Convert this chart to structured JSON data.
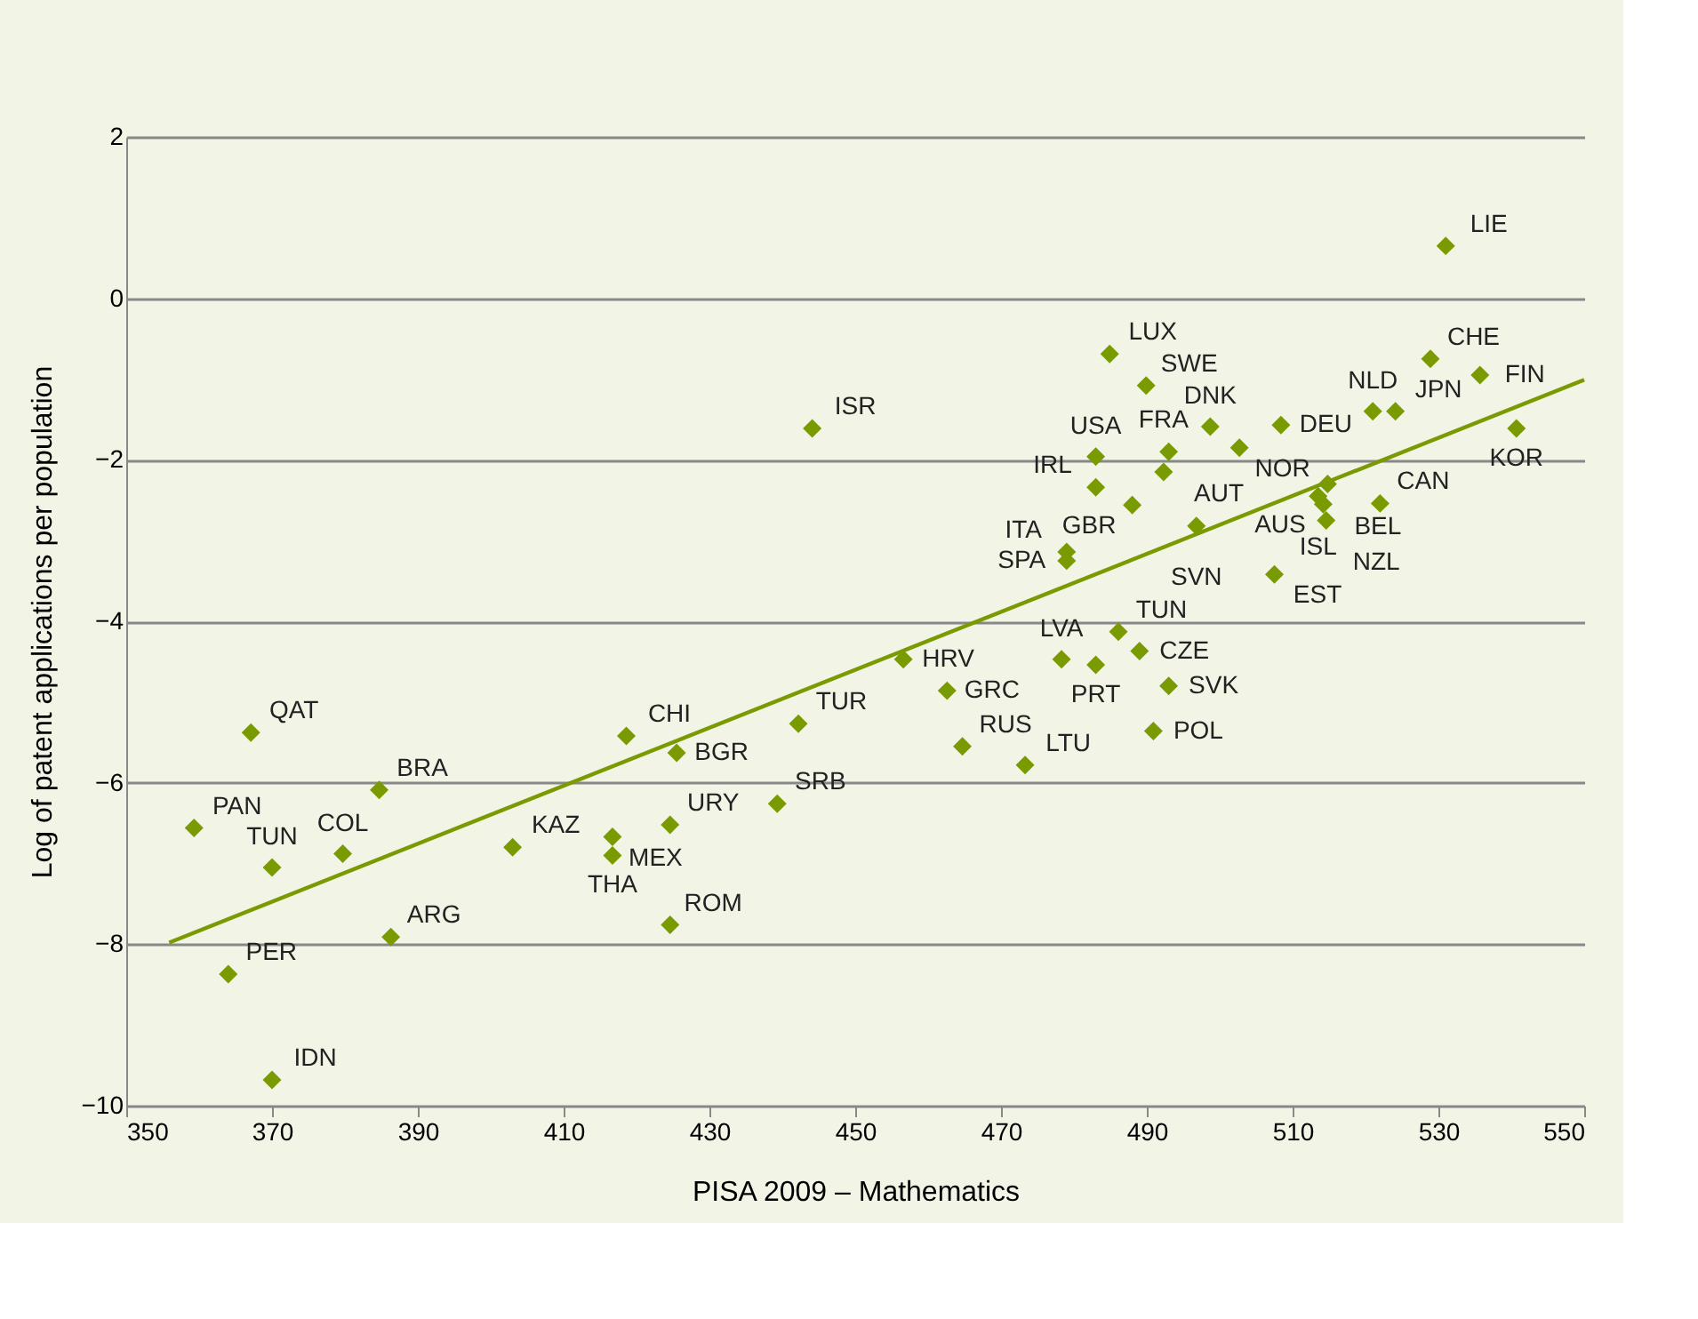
{
  "chart_data": {
    "type": "scatter",
    "xlabel": "PISA 2009 – Mathematics",
    "ylabel": "Log of patent applications per population",
    "xlim": [
      350,
      550
    ],
    "xticks": [
      350,
      370,
      390,
      410,
      430,
      450,
      470,
      490,
      510,
      530,
      550
    ],
    "ylim": [
      -10,
      2
    ],
    "yticks": [
      -10,
      -8,
      -6,
      -4,
      -2,
      0,
      2
    ],
    "grid": "y",
    "marker": "diamond",
    "series": [
      {
        "color": "#7a9a01",
        "x": [
          531.0,
          484.9,
          489.9,
          528.9,
          535.7,
          521.0,
          524.1,
          540.7,
          508.4,
          498.7,
          502.7,
          483.0,
          493.0,
          492.3,
          513.5,
          514.8,
          514.2,
          483.0,
          488.0,
          496.8,
          514.6,
          522.0,
          479.0,
          479.0,
          507.5,
          444.1,
          456.6,
          462.6,
          486.1,
          489.0,
          478.3,
          483.0,
          493.0,
          490.9,
          464.7,
          473.3,
          442.2,
          439.3,
          367.1,
          359.3,
          384.7,
          370.0,
          379.7,
          364.0,
          386.3,
          370.0,
          403.0,
          418.6,
          425.5,
          416.7,
          416.7,
          424.6,
          424.6
        ],
        "values": [
          0.65,
          -0.69,
          -1.08,
          -0.75,
          -0.95,
          -1.4,
          -1.4,
          -1.61,
          -1.57,
          -1.59,
          -1.85,
          -1.96,
          -1.9,
          -2.15,
          -2.45,
          -2.3,
          -2.55,
          -2.34,
          -2.56,
          -2.82,
          -2.75,
          -2.54,
          -3.14,
          -3.25,
          -3.42,
          -1.61,
          -4.47,
          -4.86,
          -4.13,
          -4.37,
          -4.47,
          -4.54,
          -4.8,
          -5.36,
          -5.55,
          -5.78,
          -5.27,
          -6.26,
          -5.38,
          -6.56,
          -6.09,
          -7.05,
          -6.88,
          -8.37,
          -7.91,
          -9.68,
          -6.8,
          -5.42,
          -5.63,
          -6.67,
          -6.9,
          -6.52,
          -7.76
        ],
        "value_labels": [
          "LIE",
          "LUX",
          "SWE",
          "CHE",
          "FIN",
          "NLD",
          "JPN",
          "KOR",
          "DEU",
          "DNK",
          "NOR",
          "USA",
          "AUT",
          "FRA",
          "ISL",
          "BEL",
          "AUS",
          "IRL",
          "GBR",
          "SVN",
          "NZL",
          "CAN",
          "ITA",
          "SPA",
          "EST",
          "ISR",
          "HRV",
          "GRC",
          "TUN",
          "CZE",
          "LVA",
          "PRT",
          "SVK",
          "POL",
          "RUS",
          "LTU",
          "TUR",
          "SRB",
          "QAT",
          "PAN",
          "BRA",
          "TUN",
          "COL",
          "PER",
          "ARG",
          "IDN",
          "KAZ",
          "CHI",
          "BGR",
          "MEX",
          "THA",
          "URY",
          "ROM"
        ]
      },
      {
        "type": "line",
        "marker": "none",
        "color": "#7a9a01",
        "x": [
          355.9,
          550
        ],
        "values": [
          -7.98,
          -1.01
        ]
      }
    ]
  }
}
